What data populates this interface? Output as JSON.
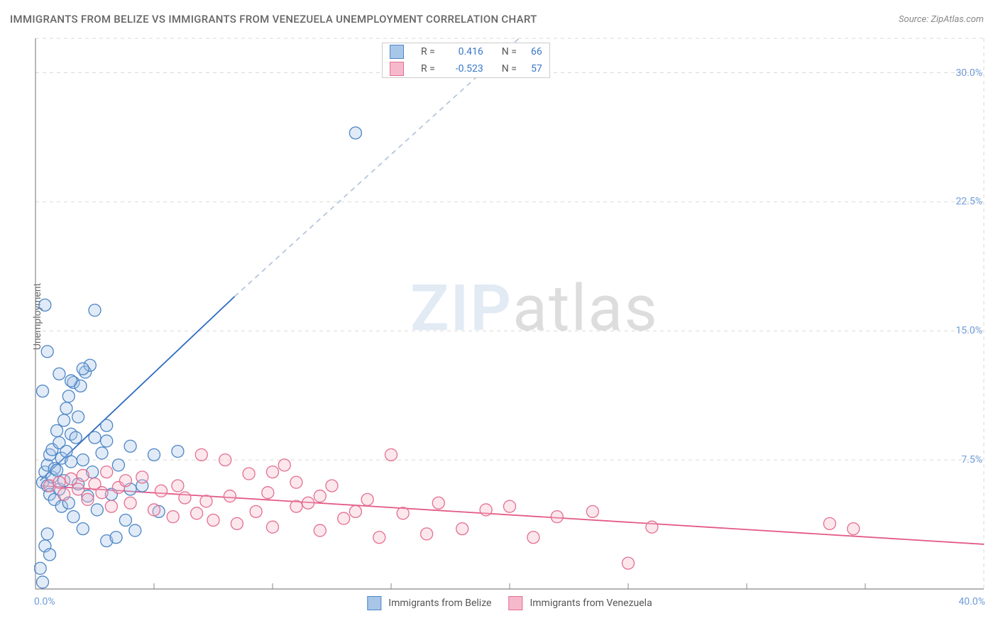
{
  "title": "IMMIGRANTS FROM BELIZE VS IMMIGRANTS FROM VENEZUELA UNEMPLOYMENT CORRELATION CHART",
  "source": "Source: ZipAtlas.com",
  "ylabel": "Unemployment",
  "watermark": {
    "part1": "ZIP",
    "part2": "atlas"
  },
  "chart": {
    "type": "scatter",
    "background_color": "#ffffff",
    "grid_color": "#d9d9d9",
    "axis_color": "#888888",
    "xlim": [
      0,
      40
    ],
    "ylim": [
      0,
      32
    ],
    "ytick_values": [
      7.5,
      15.0,
      22.5,
      30.0
    ],
    "ytick_labels": [
      "7.5%",
      "15.0%",
      "22.5%",
      "30.0%"
    ],
    "xtick_minor_step": 5,
    "xtick_label_left": "0.0%",
    "xtick_label_right": "40.0%",
    "tick_label_color": "#6f9bd8",
    "marker_radius": 8.5,
    "marker_stroke_width": 1.3,
    "marker_fill_opacity": 0.35,
    "series": [
      {
        "name": "Immigrants from Belize",
        "color_stroke": "#4d86c6",
        "color_fill": "#a8c6e8",
        "R": "0.416",
        "N": "66",
        "trend": {
          "x1": 0.2,
          "y1": 6.3,
          "x2": 8.4,
          "y2": 17.0,
          "ext_x2": 22.0,
          "ext_y2": 34.0,
          "color": "#2f6bbf",
          "dash_color": "#b7c6da",
          "width": 1.8
        },
        "points": [
          [
            0.3,
            6.2
          ],
          [
            0.4,
            6.8
          ],
          [
            0.5,
            6.0
          ],
          [
            0.5,
            7.2
          ],
          [
            0.6,
            5.5
          ],
          [
            0.6,
            7.8
          ],
          [
            0.7,
            6.5
          ],
          [
            0.7,
            8.1
          ],
          [
            0.8,
            5.2
          ],
          [
            0.8,
            7.0
          ],
          [
            0.9,
            6.9
          ],
          [
            0.9,
            9.2
          ],
          [
            1.0,
            5.8
          ],
          [
            1.0,
            8.5
          ],
          [
            1.1,
            4.8
          ],
          [
            1.1,
            7.6
          ],
          [
            1.2,
            9.8
          ],
          [
            1.2,
            6.3
          ],
          [
            1.3,
            10.5
          ],
          [
            1.3,
            8.0
          ],
          [
            1.4,
            5.0
          ],
          [
            1.4,
            11.2
          ],
          [
            1.5,
            9.0
          ],
          [
            1.5,
            7.4
          ],
          [
            1.6,
            12.0
          ],
          [
            1.6,
            4.2
          ],
          [
            1.7,
            8.8
          ],
          [
            1.8,
            6.1
          ],
          [
            1.8,
            10.0
          ],
          [
            1.9,
            11.8
          ],
          [
            2.0,
            7.5
          ],
          [
            2.0,
            3.5
          ],
          [
            2.1,
            12.6
          ],
          [
            2.2,
            5.4
          ],
          [
            2.3,
            13.0
          ],
          [
            2.4,
            6.8
          ],
          [
            2.5,
            16.2
          ],
          [
            2.6,
            4.6
          ],
          [
            2.8,
            7.9
          ],
          [
            3.0,
            2.8
          ],
          [
            3.0,
            8.6
          ],
          [
            3.2,
            5.5
          ],
          [
            3.4,
            3.0
          ],
          [
            3.5,
            7.2
          ],
          [
            3.8,
            4.0
          ],
          [
            4.0,
            8.3
          ],
          [
            4.2,
            3.4
          ],
          [
            4.5,
            6.0
          ],
          [
            5.0,
            7.8
          ],
          [
            5.2,
            4.5
          ],
          [
            0.4,
            16.5
          ],
          [
            0.5,
            13.8
          ],
          [
            0.3,
            11.5
          ],
          [
            0.2,
            1.2
          ],
          [
            0.3,
            0.4
          ],
          [
            0.4,
            2.5
          ],
          [
            0.5,
            3.2
          ],
          [
            0.6,
            2.0
          ],
          [
            1.0,
            12.5
          ],
          [
            1.5,
            12.1
          ],
          [
            2.0,
            12.8
          ],
          [
            2.5,
            8.8
          ],
          [
            3.0,
            9.5
          ],
          [
            4.0,
            5.8
          ],
          [
            6.0,
            8.0
          ],
          [
            13.5,
            26.5
          ]
        ]
      },
      {
        "name": "Immigrants from Venezuela",
        "color_stroke": "#e36f91",
        "color_fill": "#f5b9cb",
        "R": "-0.523",
        "N": "57",
        "trend": {
          "x1": 0.2,
          "y1": 6.0,
          "x2": 40.0,
          "y2": 2.6,
          "color": "#e35a85",
          "width": 1.8
        },
        "points": [
          [
            0.6,
            6.0
          ],
          [
            1.0,
            6.2
          ],
          [
            1.2,
            5.5
          ],
          [
            1.5,
            6.4
          ],
          [
            1.8,
            5.8
          ],
          [
            2.0,
            6.6
          ],
          [
            2.2,
            5.2
          ],
          [
            2.5,
            6.1
          ],
          [
            2.8,
            5.6
          ],
          [
            3.0,
            6.8
          ],
          [
            3.2,
            4.8
          ],
          [
            3.5,
            5.9
          ],
          [
            3.8,
            6.3
          ],
          [
            4.0,
            5.0
          ],
          [
            4.5,
            6.5
          ],
          [
            5.0,
            4.6
          ],
          [
            5.3,
            5.7
          ],
          [
            5.8,
            4.2
          ],
          [
            6.0,
            6.0
          ],
          [
            6.3,
            5.3
          ],
          [
            6.8,
            4.4
          ],
          [
            7.0,
            7.8
          ],
          [
            7.2,
            5.1
          ],
          [
            7.5,
            4.0
          ],
          [
            8.0,
            7.5
          ],
          [
            8.2,
            5.4
          ],
          [
            8.5,
            3.8
          ],
          [
            9.0,
            6.7
          ],
          [
            9.3,
            4.5
          ],
          [
            9.8,
            5.6
          ],
          [
            10.0,
            3.6
          ],
          [
            10.5,
            7.2
          ],
          [
            11.0,
            4.8
          ],
          [
            11.5,
            5.0
          ],
          [
            12.0,
            3.4
          ],
          [
            12.5,
            6.0
          ],
          [
            13.0,
            4.1
          ],
          [
            14.0,
            5.2
          ],
          [
            14.5,
            3.0
          ],
          [
            15.0,
            7.8
          ],
          [
            15.5,
            4.4
          ],
          [
            16.5,
            3.2
          ],
          [
            17.0,
            5.0
          ],
          [
            18.0,
            3.5
          ],
          [
            19.0,
            4.6
          ],
          [
            20.0,
            4.8
          ],
          [
            21.0,
            3.0
          ],
          [
            22.0,
            4.2
          ],
          [
            23.5,
            4.5
          ],
          [
            25.0,
            1.5
          ],
          [
            26.0,
            3.6
          ],
          [
            33.5,
            3.8
          ],
          [
            34.5,
            3.5
          ],
          [
            10.0,
            6.8
          ],
          [
            11.0,
            6.2
          ],
          [
            12.0,
            5.4
          ],
          [
            13.5,
            4.5
          ]
        ]
      }
    ]
  },
  "legend_bottom": [
    {
      "label": "Immigrants from Belize"
    },
    {
      "label": "Immigrants from Venezuela"
    }
  ]
}
